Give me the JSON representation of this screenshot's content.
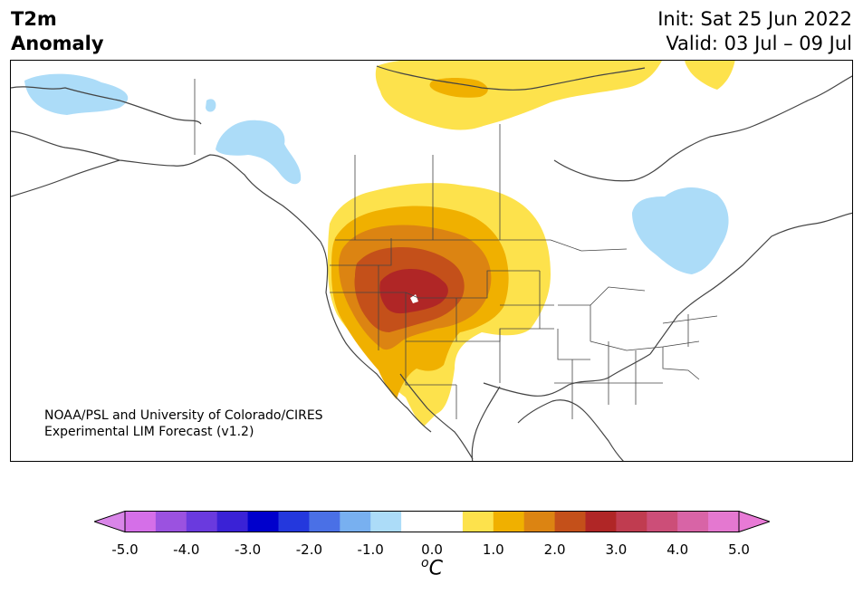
{
  "header": {
    "title_line1": "T2m",
    "title_line2": "Anomaly",
    "init": "Init: Sat 25 Jun 2022",
    "valid": "Valid: 03 Jul – 09 Jul"
  },
  "credit": {
    "line1": "NOAA/PSL and University of Colorado/CIRES",
    "line2": "Experimental LIM Forecast (v1.2)"
  },
  "colorbar": {
    "ticks": [
      "-5.0",
      "-4.0",
      "-3.0",
      "-2.0",
      "-1.0",
      "0.0",
      "1.0",
      "2.0",
      "3.0",
      "4.0",
      "5.0"
    ],
    "unit_base": "C",
    "unit_sup": "o",
    "under_color": "#d985e8",
    "over_color": "#e87ad6",
    "colors": [
      "#d56fe8",
      "#9b52e0",
      "#6a3ade",
      "#3a22d6",
      "#0000cc",
      "#2438dd",
      "#4a70e6",
      "#78b0f0",
      "#acdcf8",
      "#ffffff",
      "#ffffff",
      "#fde24c",
      "#f0b000",
      "#dc8412",
      "#c4501a",
      "#b02626",
      "#c03c50",
      "#cc4e78",
      "#d864a6",
      "#e478d0"
    ]
  }
}
